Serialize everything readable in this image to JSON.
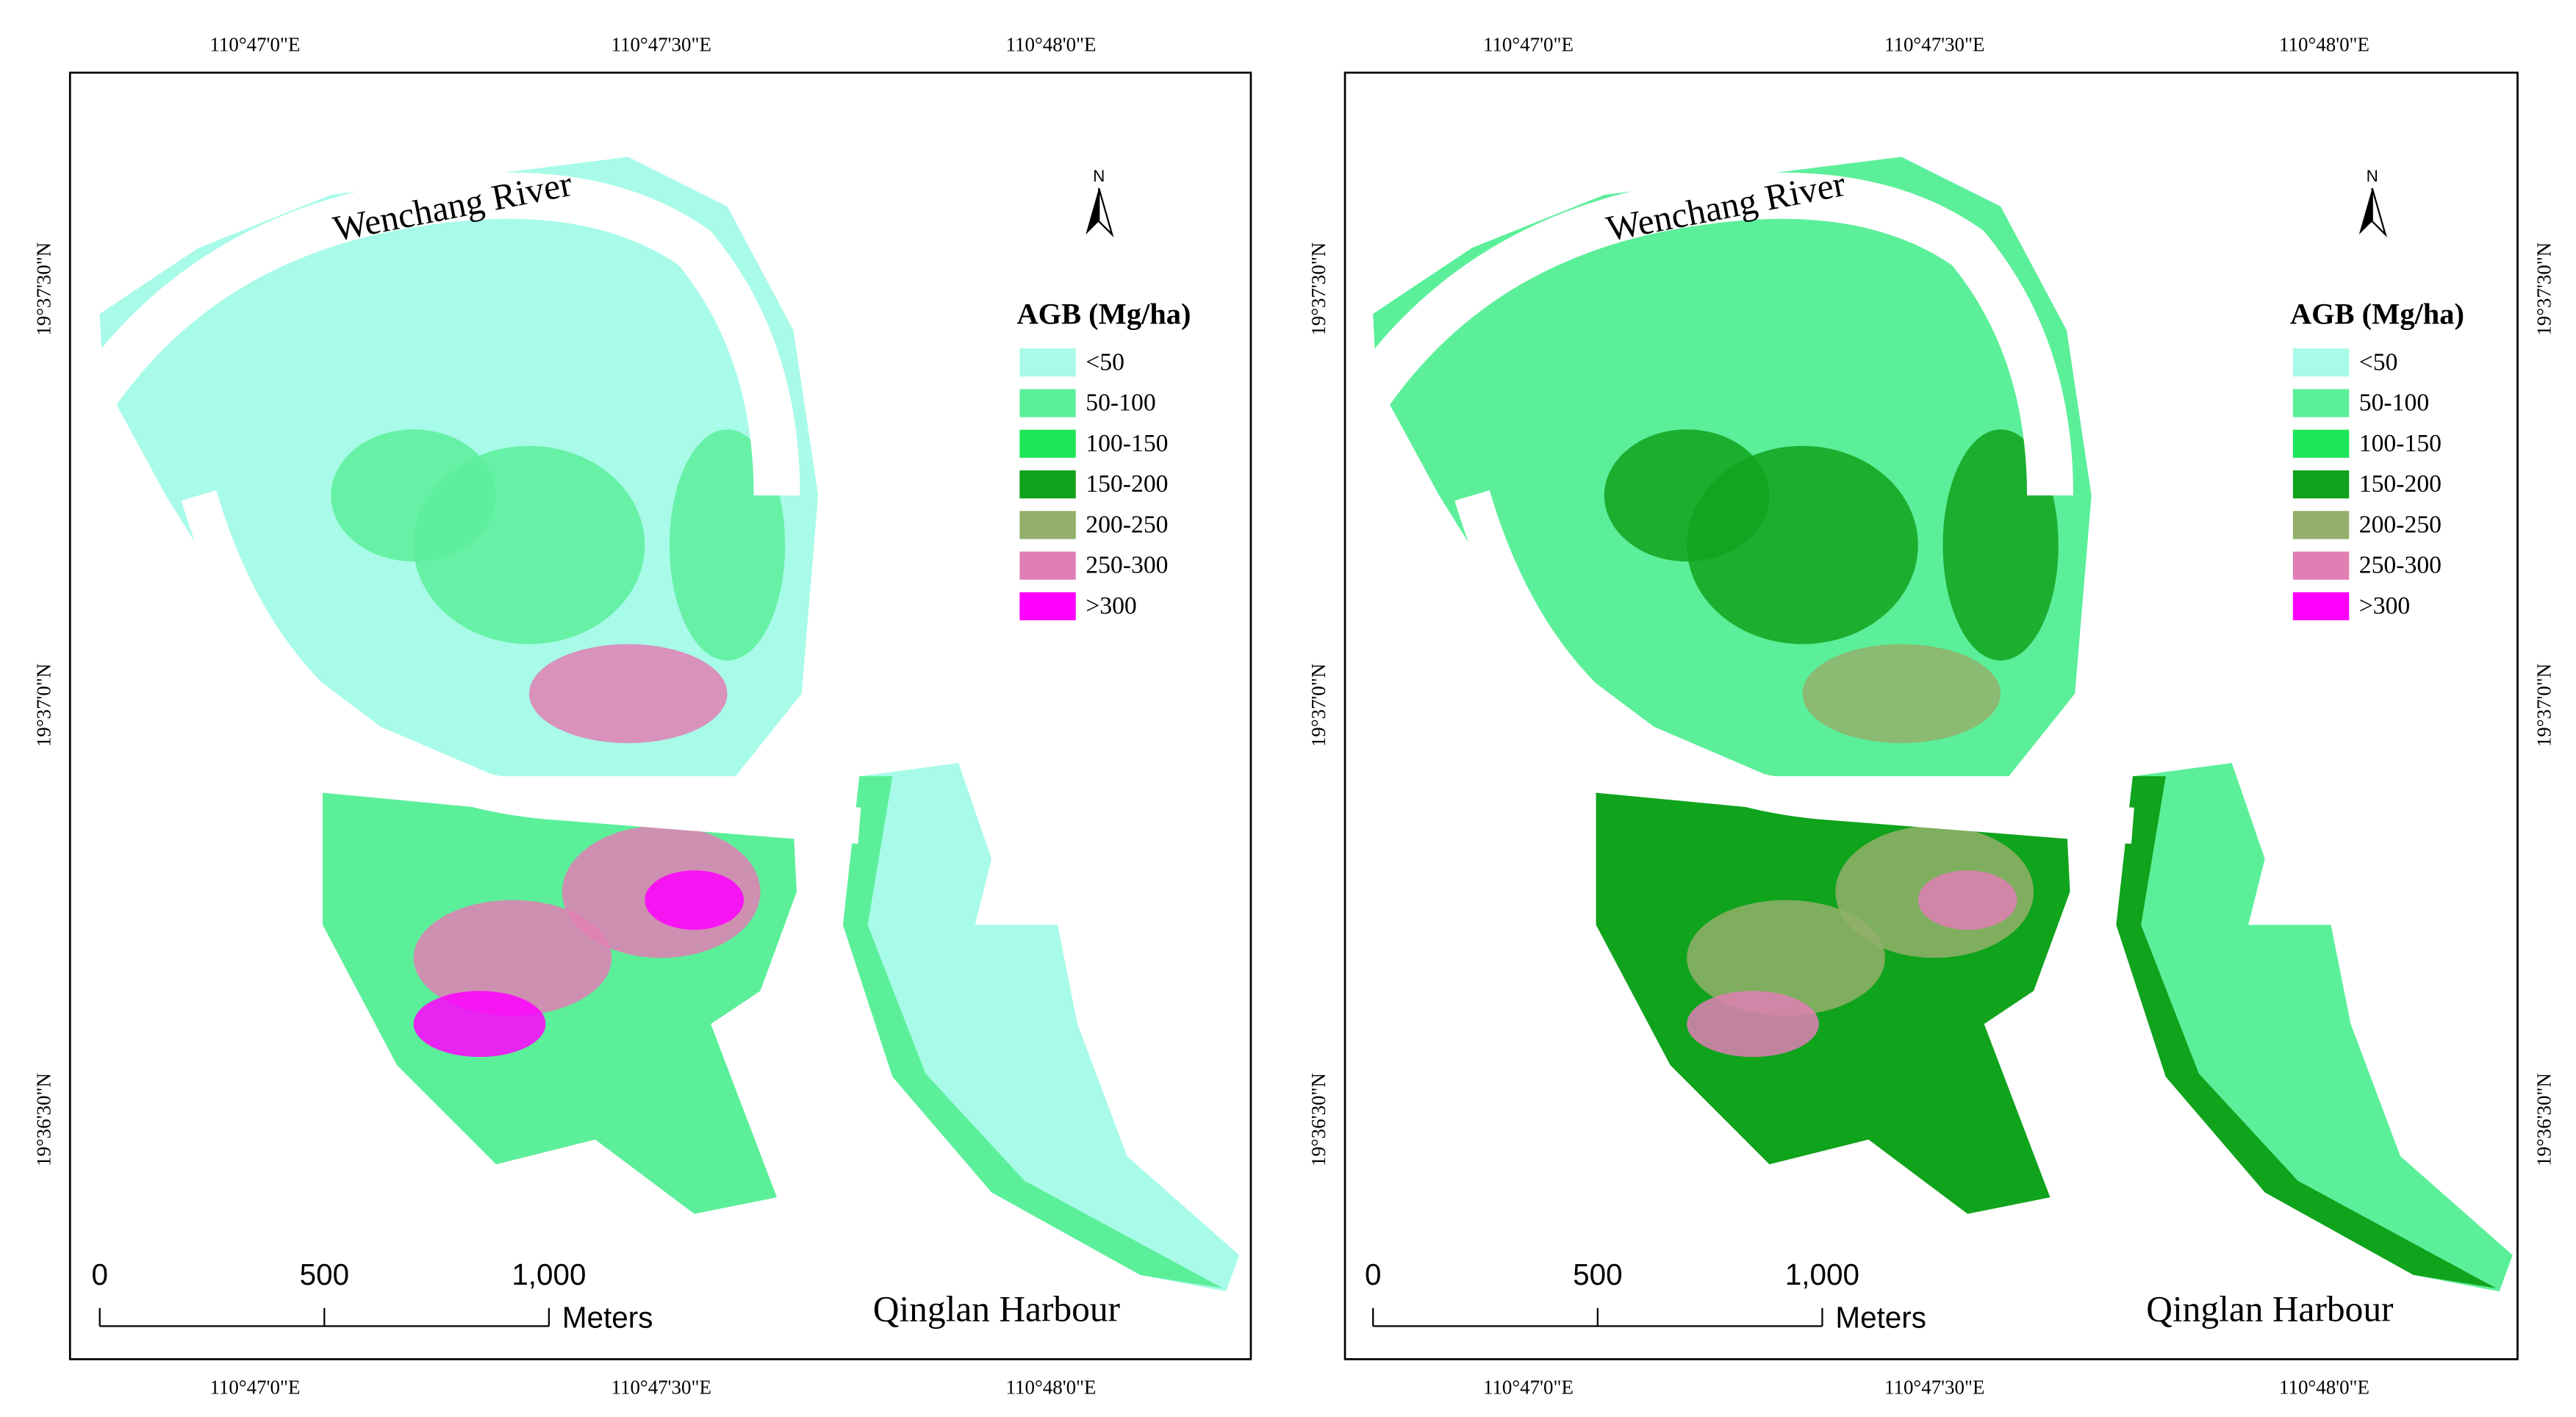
{
  "panels": [
    {
      "lon_labels_top": [
        "110°47'0\"E",
        "110°47'30\"E",
        "110°48'0\"E"
      ],
      "lon_labels_bottom": [
        "110°47'0\"E",
        "110°47'30\"E",
        "110°48'0\"E"
      ],
      "lat_labels_left": [
        "19°37'30\"N",
        "19°37'0\"N",
        "19°36'30\"N"
      ],
      "river_label": "Wenchang River",
      "harbour_label": "Qinglan Harbour",
      "north": "N",
      "legend": {
        "title": "AGB (Mg/ha)",
        "items": [
          {
            "label": "<50",
            "color": "#a8fbe8"
          },
          {
            "label": "50-100",
            "color": "#5cef9a"
          },
          {
            "label": "100-150",
            "color": "#1ee65a"
          },
          {
            "label": "150-200",
            "color": "#10a31c"
          },
          {
            "label": "200-250",
            "color": "#93b06b"
          },
          {
            "label": "250-300",
            "color": "#e07fb4"
          },
          {
            "label": ">300",
            "color": "#ff00ff"
          }
        ]
      },
      "scale_labels": [
        "0",
        "500",
        "1,000"
      ],
      "scale_unit": "Meters"
    },
    {
      "lon_labels_top": [
        "110°47'0\"E",
        "110°47'30\"E",
        "110°48'0\"E"
      ],
      "lon_labels_bottom": [
        "110°47'0\"E",
        "110°47'30\"E",
        "110°48'0\"E"
      ],
      "lat_labels_left": [
        "19°37'30\"N",
        "19°37'0\"N",
        "19°36'30\"N"
      ],
      "lat_labels_right": [
        "19°37'30\"N",
        "19°37'0\"N",
        "19°36'30\"N"
      ],
      "river_label": "Wenchang River",
      "harbour_label": "Qinglan Harbour",
      "north": "N",
      "legend": {
        "title": "AGB (Mg/ha)",
        "items": [
          {
            "label": "<50",
            "color": "#a8fbe8"
          },
          {
            "label": "50-100",
            "color": "#5cef9a"
          },
          {
            "label": "100-150",
            "color": "#1ee65a"
          },
          {
            "label": "150-200",
            "color": "#10a31c"
          },
          {
            "label": "200-250",
            "color": "#93b06b"
          },
          {
            "label": "250-300",
            "color": "#e07fb4"
          },
          {
            "label": ">300",
            "color": "#ff00ff"
          }
        ]
      },
      "scale_labels": [
        "0",
        "500",
        "1,000"
      ],
      "scale_unit": "Meters"
    }
  ]
}
